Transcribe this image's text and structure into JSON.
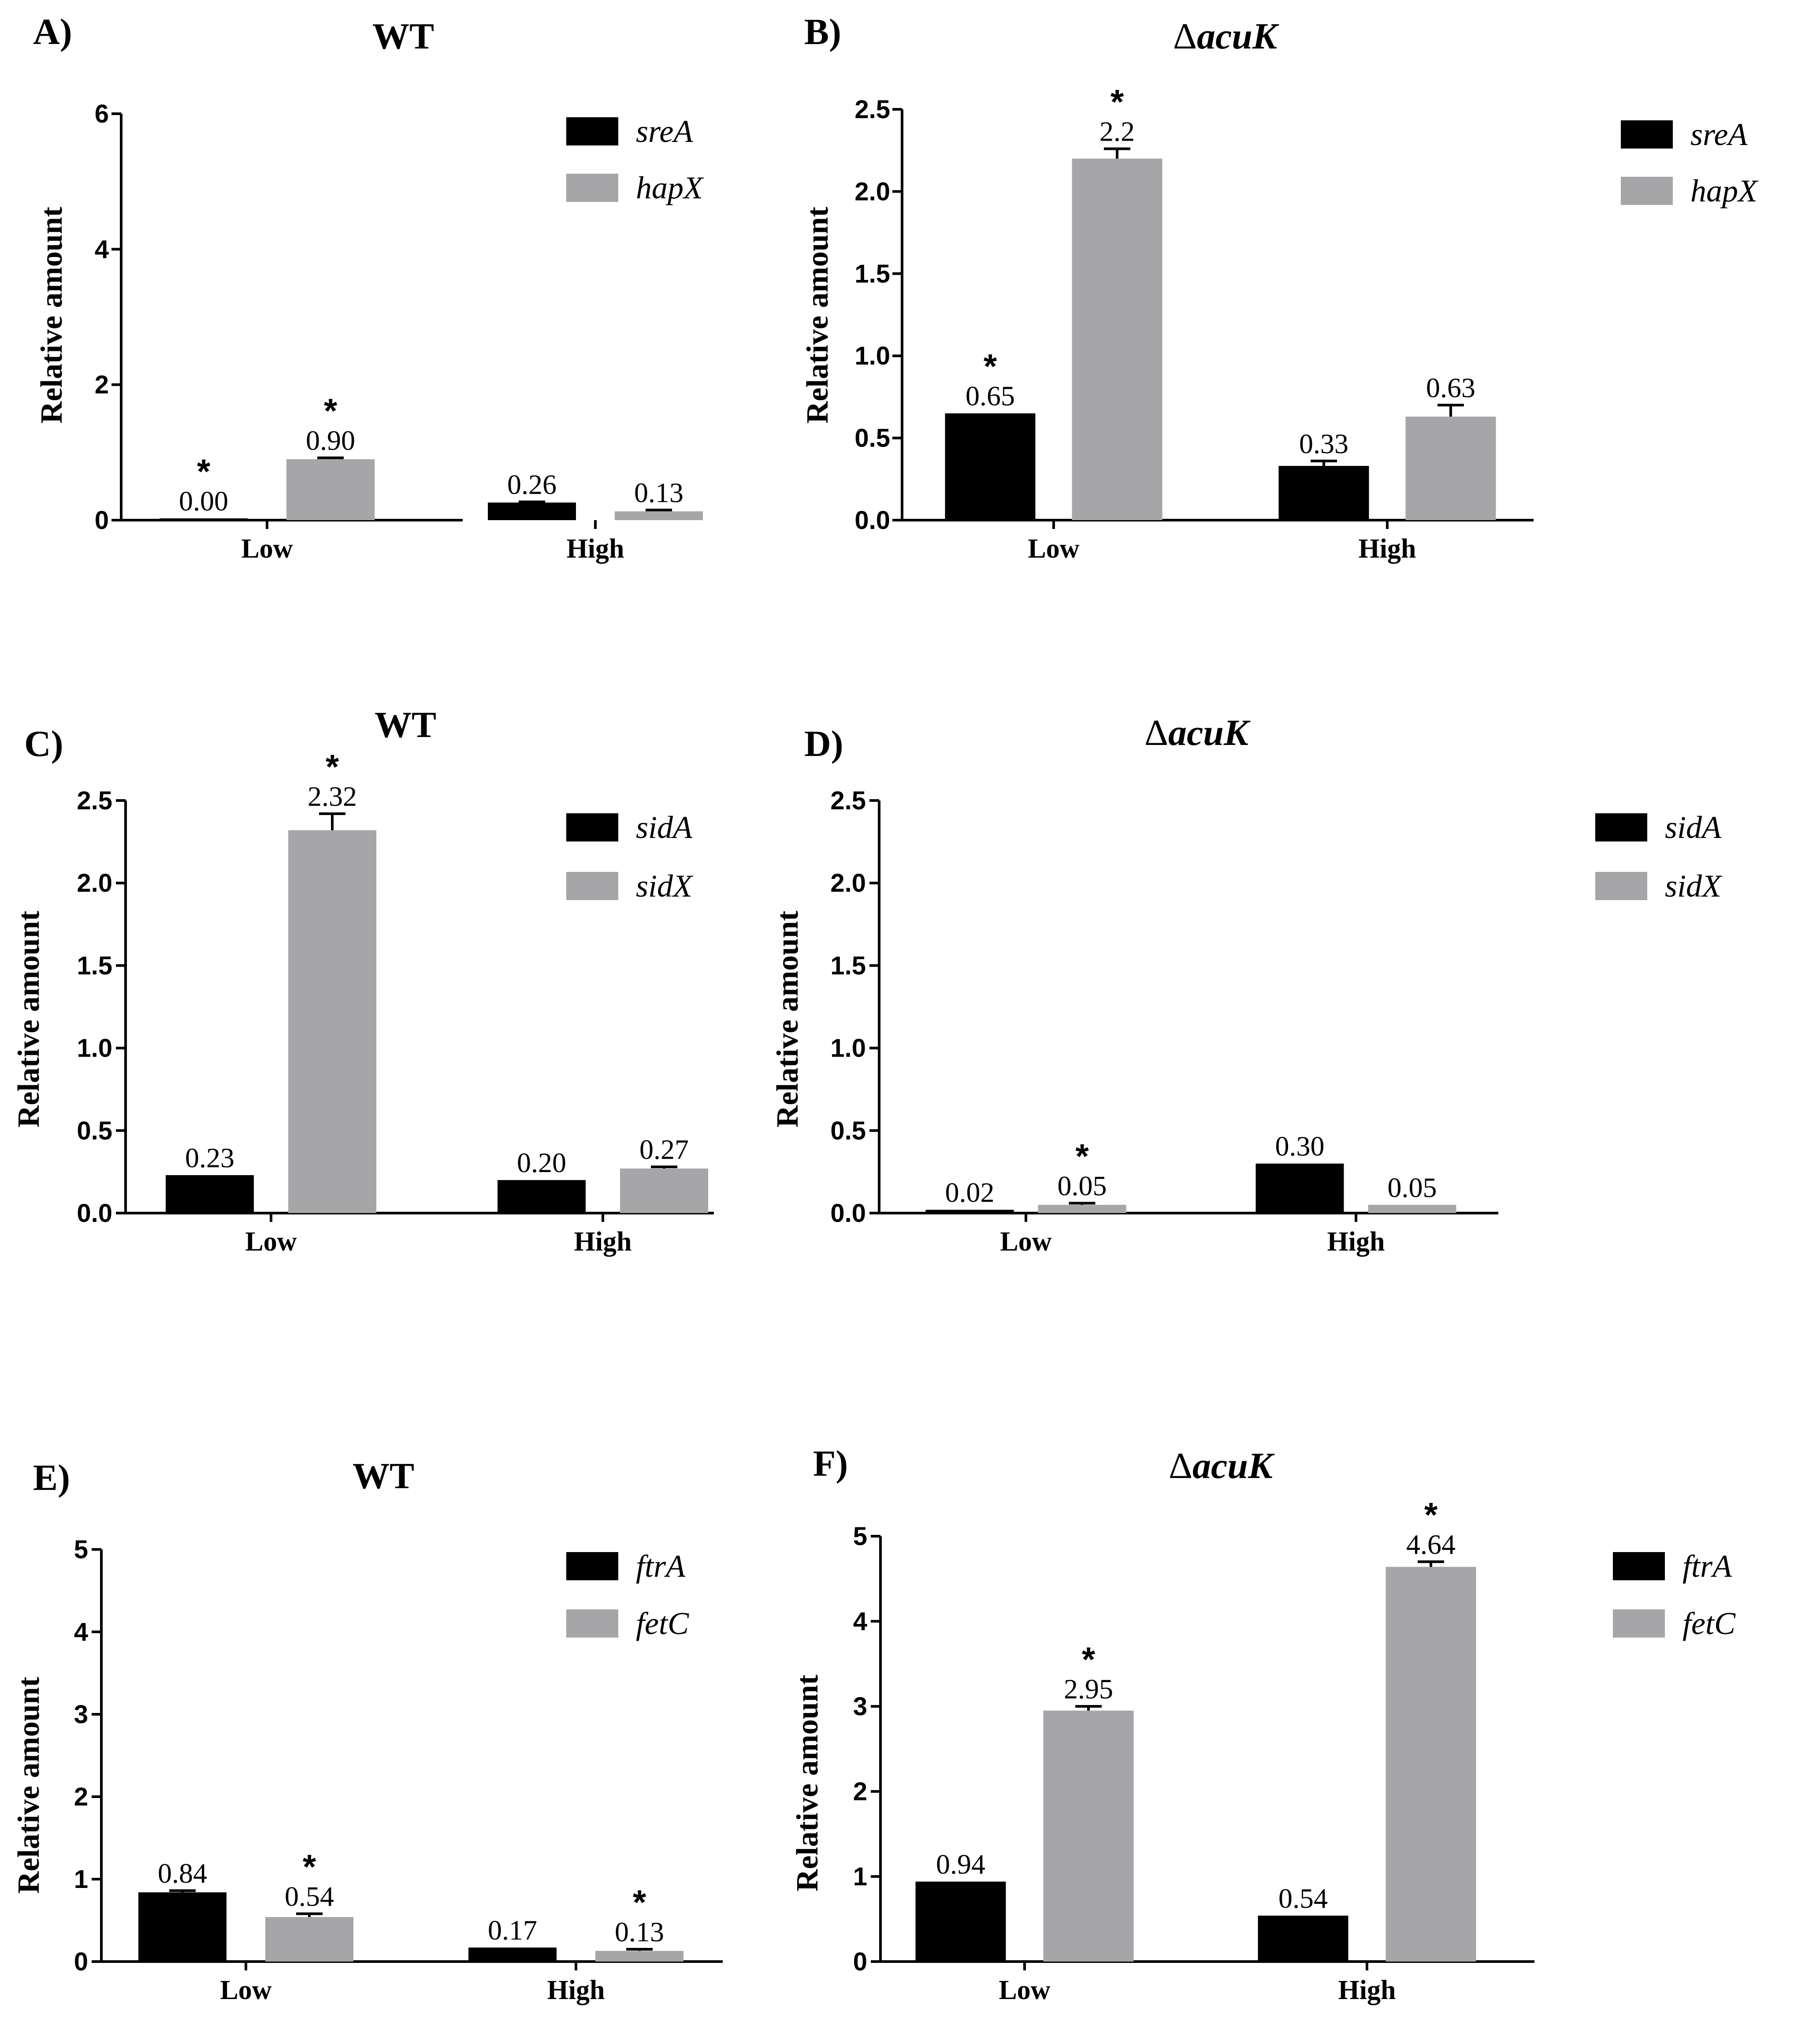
{
  "colors": {
    "series1": "#000000",
    "series2": "#a6a6a9",
    "axis": "#000000"
  },
  "chart_data": [
    {
      "panel": "A)",
      "title": "WT",
      "title_italic": "",
      "title_delta": false,
      "type": "bar",
      "ylabel": "Relative amount",
      "categories": [
        "Low",
        "High"
      ],
      "ylim": [
        0,
        6
      ],
      "ticks": [
        0,
        2,
        4,
        6
      ],
      "tick_labels": [
        "0",
        "2",
        "4",
        "6"
      ],
      "series": [
        {
          "name": "sreA",
          "values": [
            0.0,
            0.26
          ],
          "labels": [
            "0.00",
            "0.26"
          ],
          "stars": [
            true,
            false
          ],
          "errors": [
            0.0,
            0.01
          ]
        },
        {
          "name": "hapX",
          "values": [
            0.9,
            0.13
          ],
          "labels": [
            "0.90",
            "0.13"
          ],
          "stars": [
            true,
            false
          ],
          "errors": [
            0.02,
            0.02
          ]
        }
      ]
    },
    {
      "panel": "B)",
      "title": "",
      "title_italic": "acuK",
      "title_delta": true,
      "type": "bar",
      "ylabel": "Relative amount",
      "categories": [
        "Low",
        "High"
      ],
      "ylim": [
        0,
        2.5
      ],
      "ticks": [
        0,
        0.5,
        1,
        1.5,
        2,
        2.5
      ],
      "tick_labels": [
        "0.0",
        "0.5",
        "1.0",
        "1.5",
        "2.0",
        "2.5"
      ],
      "series": [
        {
          "name": "sreA",
          "values": [
            0.65,
            0.33
          ],
          "labels": [
            "0.65",
            "0.33"
          ],
          "stars": [
            true,
            false
          ],
          "errors": [
            0.0,
            0.03
          ]
        },
        {
          "name": "hapX",
          "values": [
            2.2,
            0.63
          ],
          "labels": [
            "2.2",
            "0.63"
          ],
          "stars": [
            true,
            false
          ],
          "errors": [
            0.06,
            0.07
          ]
        }
      ]
    },
    {
      "panel": "C)",
      "title": "WT",
      "title_italic": "",
      "title_delta": false,
      "type": "bar",
      "ylabel": "Relative amount",
      "categories": [
        "Low",
        "High"
      ],
      "ylim": [
        0,
        2.5
      ],
      "ticks": [
        0,
        0.5,
        1,
        1.5,
        2,
        2.5
      ],
      "tick_labels": [
        "0.0",
        "0.5",
        "1.0",
        "1.5",
        "2.0",
        "2.5"
      ],
      "series": [
        {
          "name": "sidA",
          "values": [
            0.23,
            0.2
          ],
          "labels": [
            "0.23",
            "0.20"
          ],
          "stars": [
            false,
            false
          ],
          "errors": [
            0.0,
            0.0
          ]
        },
        {
          "name": "sidX",
          "values": [
            2.32,
            0.27
          ],
          "labels": [
            "2.32",
            "0.27"
          ],
          "stars": [
            true,
            false
          ],
          "errors": [
            0.1,
            0.01
          ]
        }
      ]
    },
    {
      "panel": "D)",
      "title": "",
      "title_italic": "acuK",
      "title_delta": true,
      "type": "bar",
      "ylabel": "Relative amount",
      "categories": [
        "Low",
        "High"
      ],
      "ylim": [
        0,
        2.5
      ],
      "ticks": [
        0,
        0.5,
        1,
        1.5,
        2,
        2.5
      ],
      "tick_labels": [
        "0.0",
        "0.5",
        "1.0",
        "1.5",
        "2.0",
        "2.5"
      ],
      "series": [
        {
          "name": "sidA",
          "values": [
            0.02,
            0.3
          ],
          "labels": [
            "0.02",
            "0.30"
          ],
          "stars": [
            false,
            false
          ],
          "errors": [
            0.0,
            0.0
          ]
        },
        {
          "name": "sidX",
          "values": [
            0.05,
            0.05
          ],
          "labels": [
            "0.05",
            "0.05"
          ],
          "stars": [
            true,
            false
          ],
          "errors": [
            0.01,
            0.0
          ]
        }
      ]
    },
    {
      "panel": "E)",
      "title": "WT",
      "title_italic": "",
      "title_delta": false,
      "type": "bar",
      "ylabel": "Relative amount",
      "categories": [
        "Low",
        "High"
      ],
      "ylim": [
        0,
        5
      ],
      "ticks": [
        0,
        1,
        2,
        3,
        4,
        5
      ],
      "tick_labels": [
        "0",
        "1",
        "2",
        "3",
        "4",
        "5"
      ],
      "series": [
        {
          "name": "ftrA",
          "values": [
            0.84,
            0.17
          ],
          "labels": [
            "0.84",
            "0.17"
          ],
          "stars": [
            false,
            false
          ],
          "errors": [
            0.02,
            0.0
          ]
        },
        {
          "name": "fetC",
          "values": [
            0.54,
            0.13
          ],
          "labels": [
            "0.54",
            "0.13"
          ],
          "stars": [
            true,
            true
          ],
          "errors": [
            0.04,
            0.02
          ]
        }
      ]
    },
    {
      "panel": "F)",
      "title": "",
      "title_italic": "acuK",
      "title_delta": true,
      "type": "bar",
      "ylabel": "Relative amount",
      "categories": [
        "Low",
        "High"
      ],
      "ylim": [
        0,
        5
      ],
      "ticks": [
        0,
        1,
        2,
        3,
        4,
        5
      ],
      "tick_labels": [
        "0",
        "1",
        "2",
        "3",
        "4",
        "5"
      ],
      "series": [
        {
          "name": "ftrA",
          "values": [
            0.94,
            0.54
          ],
          "labels": [
            "0.94",
            "0.54"
          ],
          "stars": [
            false,
            false
          ],
          "errors": [
            0.0,
            0.0
          ]
        },
        {
          "name": "fetC",
          "values": [
            2.95,
            4.64
          ],
          "labels": [
            "2.95",
            "4.64"
          ],
          "stars": [
            true,
            true
          ],
          "errors": [
            0.05,
            0.06
          ]
        }
      ]
    }
  ]
}
